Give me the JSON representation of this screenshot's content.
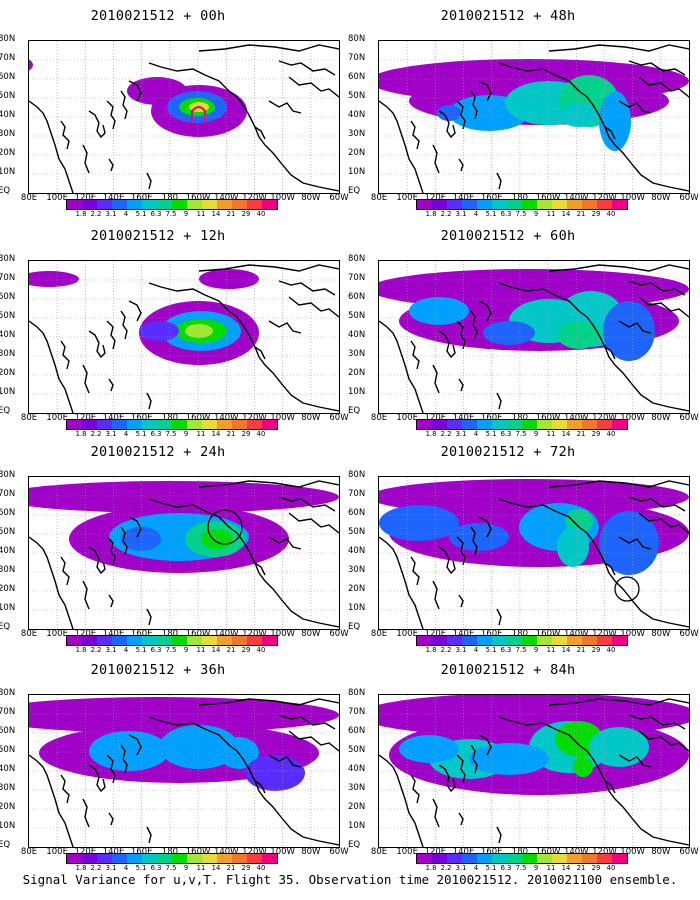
{
  "panels": [
    {
      "title": "2010021512 + 00h",
      "lead": "00h"
    },
    {
      "title": "2010021512 + 48h",
      "lead": "48h"
    },
    {
      "title": "2010021512 + 12h",
      "lead": "12h"
    },
    {
      "title": "2010021512 + 60h",
      "lead": "60h"
    },
    {
      "title": "2010021512 + 24h",
      "lead": "24h"
    },
    {
      "title": "2010021512 + 72h",
      "lead": "72h"
    },
    {
      "title": "2010021512 + 36h",
      "lead": "36h"
    },
    {
      "title": "2010021512 + 84h",
      "lead": "84h"
    }
  ],
  "lat_labels": [
    "80N",
    "70N",
    "60N",
    "50N",
    "40N",
    "30N",
    "20N",
    "10N",
    "EQ"
  ],
  "lon_labels": [
    "80E",
    "100E",
    "120E",
    "140E",
    "160E",
    "180",
    "160W",
    "140W",
    "120W",
    "100W",
    "80W",
    "60W"
  ],
  "colorbar": {
    "values": [
      "1.8",
      "2.2",
      "3.1",
      "4",
      "5.1",
      "6.3",
      "7.5",
      "9",
      "11",
      "14",
      "21",
      "29",
      "40"
    ],
    "colors": [
      "#a000c8",
      "#7800dc",
      "#5a2cff",
      "#1e64ff",
      "#00a0ff",
      "#00c8c8",
      "#00d28c",
      "#00dc00",
      "#a0e632",
      "#e6dc32",
      "#f0a028",
      "#f07828",
      "#fa3c3c",
      "#f00082"
    ]
  },
  "caption": "Signal Variance for u,v,T. Flight 35. Observation time 2010021512. 2010021100 ensemble."
}
